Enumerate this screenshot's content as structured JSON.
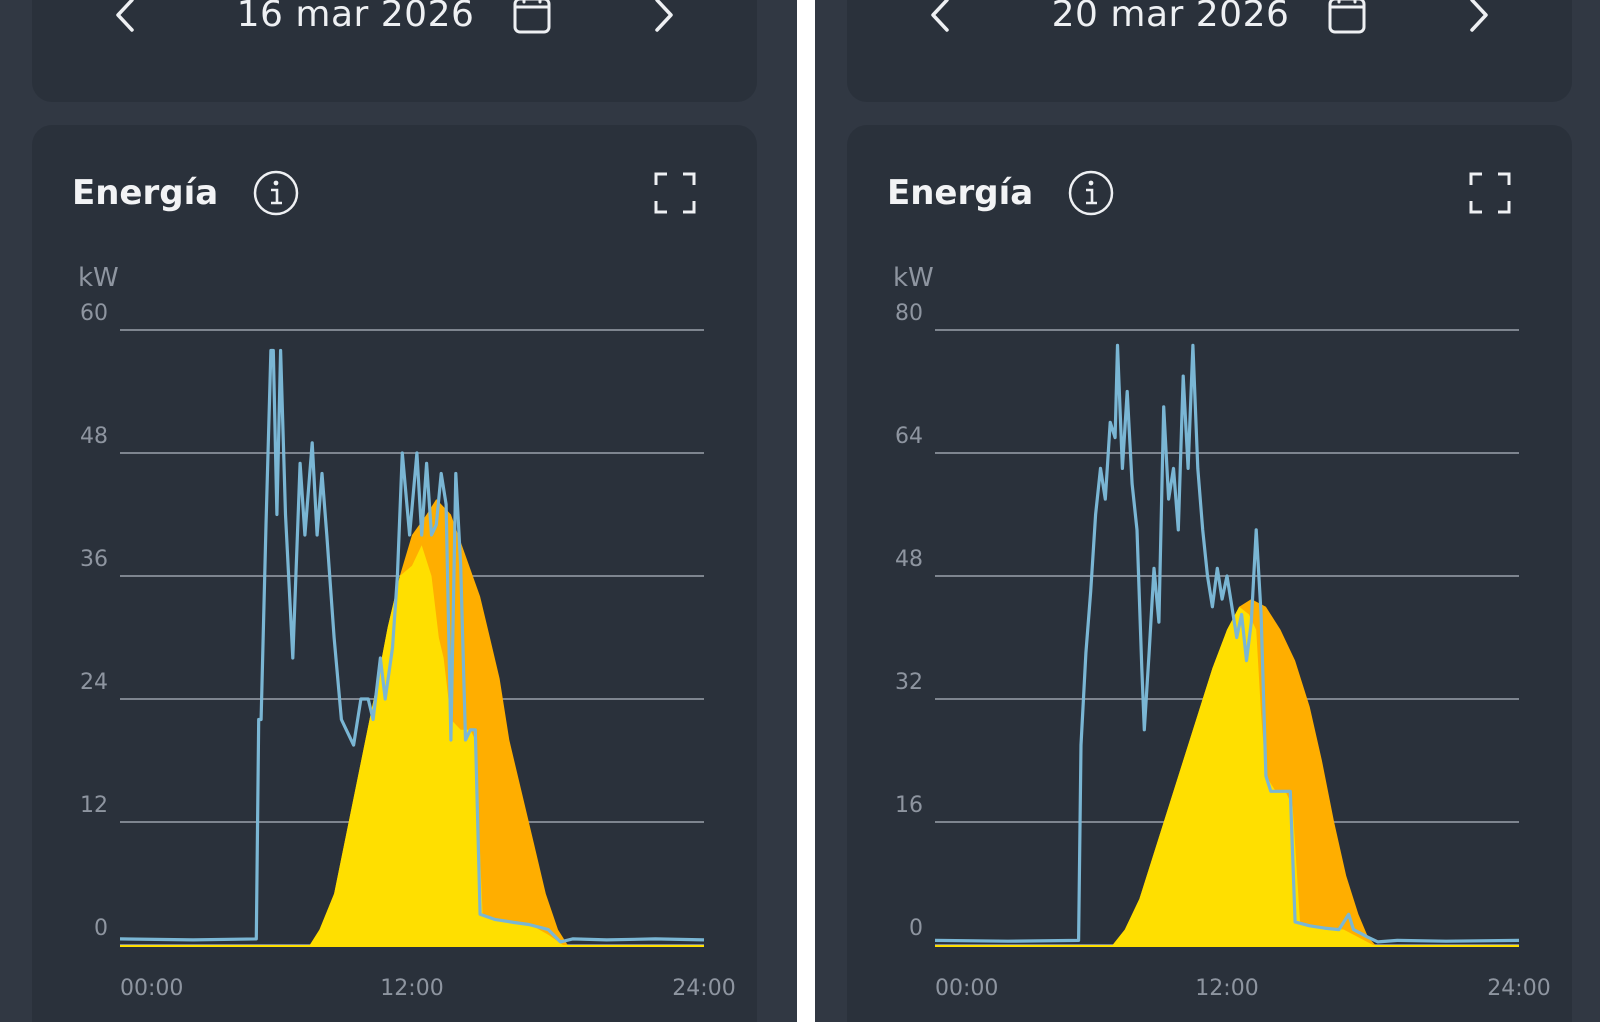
{
  "screens": [
    {
      "date": "16 mar 2026",
      "chart_title": "Energía",
      "icons": {
        "prev": "chevron-left-icon",
        "next": "chevron-right-icon",
        "calendar": "calendar-icon",
        "info": "info-icon",
        "expand": "expand-icon"
      },
      "colors": {
        "grid": "#9aa1ab",
        "axis_text": "#8e95a0",
        "consumption": "#7ab6d4",
        "solar_orange": "#ffae00",
        "solar_yellow": "#ffdf00"
      }
    },
    {
      "date": "20 mar 2026",
      "chart_title": "Energía",
      "icons": {
        "prev": "chevron-left-icon",
        "next": "chevron-right-icon",
        "calendar": "calendar-icon",
        "info": "info-icon",
        "expand": "expand-icon"
      },
      "colors": {
        "grid": "#9aa1ab",
        "axis_text": "#8e95a0",
        "consumption": "#7ab6d4",
        "solar_orange": "#ffae00",
        "solar_yellow": "#ffdf00"
      }
    }
  ],
  "chart_data": [
    {
      "type": "area",
      "title": "Energía",
      "ylabel": "kW",
      "ylim": [
        0,
        60
      ],
      "yticks": [
        0,
        12,
        24,
        36,
        48,
        60
      ],
      "xlim": [
        0,
        24
      ],
      "xticks": [
        "00:00",
        "12:00",
        "24:00"
      ],
      "grid": true,
      "series": [
        {
          "kind": "area",
          "color": "orange",
          "points": [
            [
              7.8,
              0
            ],
            [
              8.2,
              1.5
            ],
            [
              8.8,
              5
            ],
            [
              9.4,
              12
            ],
            [
              10,
              19
            ],
            [
              10.6,
              26
            ],
            [
              11,
              31
            ],
            [
              11.5,
              36
            ],
            [
              12,
              40
            ],
            [
              12.6,
              42
            ],
            [
              13,
              43.5
            ],
            [
              13.6,
              42
            ],
            [
              14.2,
              38
            ],
            [
              14.8,
              34
            ],
            [
              15.2,
              30
            ],
            [
              15.6,
              26
            ],
            [
              16,
              20
            ],
            [
              16.5,
              15
            ],
            [
              17,
              10
            ],
            [
              17.5,
              5
            ],
            [
              18,
              1.5
            ],
            [
              18.4,
              0
            ]
          ]
        },
        {
          "kind": "area",
          "color": "yellow",
          "points": [
            [
              7.8,
              0
            ],
            [
              8.2,
              1.5
            ],
            [
              8.8,
              5
            ],
            [
              9.4,
              12
            ],
            [
              10,
              19
            ],
            [
              10.6,
              26
            ],
            [
              11,
              31
            ],
            [
              11.5,
              36
            ],
            [
              12,
              37
            ],
            [
              12.4,
              39
            ],
            [
              12.8,
              36
            ],
            [
              13.1,
              30
            ],
            [
              13.3,
              28
            ],
            [
              13.6,
              22
            ],
            [
              14,
              21
            ],
            [
              14.4,
              21
            ],
            [
              14.6,
              20
            ],
            [
              14.9,
              3
            ],
            [
              15.5,
              2.5
            ],
            [
              16.2,
              2.2
            ],
            [
              17,
              1.8
            ],
            [
              17.6,
              1
            ],
            [
              18.2,
              0
            ]
          ]
        },
        {
          "kind": "line",
          "color": "blue",
          "points": [
            [
              0,
              0.6
            ],
            [
              3,
              0.5
            ],
            [
              5.6,
              0.6
            ],
            [
              5.7,
              22
            ],
            [
              5.8,
              22
            ],
            [
              6,
              41
            ],
            [
              6.2,
              58
            ],
            [
              6.3,
              58
            ],
            [
              6.45,
              42
            ],
            [
              6.6,
              58
            ],
            [
              6.8,
              42
            ],
            [
              7.1,
              28
            ],
            [
              7.4,
              47
            ],
            [
              7.6,
              40
            ],
            [
              7.9,
              49
            ],
            [
              8.1,
              40
            ],
            [
              8.3,
              46
            ],
            [
              8.5,
              40
            ],
            [
              8.8,
              30
            ],
            [
              9.1,
              22
            ],
            [
              9.3,
              21
            ],
            [
              9.6,
              19.5
            ],
            [
              9.9,
              24
            ],
            [
              10.2,
              24
            ],
            [
              10.4,
              22
            ],
            [
              10.7,
              28
            ],
            [
              10.9,
              24
            ],
            [
              11.2,
              29
            ],
            [
              11.4,
              36
            ],
            [
              11.6,
              48
            ],
            [
              11.9,
              40
            ],
            [
              12.2,
              48
            ],
            [
              12.4,
              40
            ],
            [
              12.6,
              47
            ],
            [
              12.8,
              40
            ],
            [
              13.0,
              41
            ],
            [
              13.2,
              46
            ],
            [
              13.4,
              43
            ],
            [
              13.6,
              20
            ],
            [
              13.8,
              46
            ],
            [
              14.0,
              37
            ],
            [
              14.2,
              20
            ],
            [
              14.4,
              21
            ],
            [
              14.6,
              21
            ],
            [
              14.8,
              3
            ],
            [
              15.4,
              2.5
            ],
            [
              16.2,
              2.2
            ],
            [
              16.8,
              2
            ],
            [
              17.6,
              1.5
            ],
            [
              18.1,
              0.3
            ],
            [
              18.6,
              0.6
            ],
            [
              20,
              0.5
            ],
            [
              22,
              0.6
            ],
            [
              24,
              0.5
            ]
          ]
        }
      ]
    },
    {
      "type": "area",
      "title": "Energía",
      "ylabel": "kW",
      "ylim": [
        0,
        80
      ],
      "yticks": [
        0,
        16,
        32,
        48,
        64,
        80
      ],
      "xlim": [
        0,
        24
      ],
      "xticks": [
        "00:00",
        "12:00",
        "24:00"
      ],
      "grid": true,
      "series": [
        {
          "kind": "area",
          "color": "orange",
          "points": [
            [
              7.3,
              0
            ],
            [
              7.8,
              2
            ],
            [
              8.4,
              6
            ],
            [
              9,
              12
            ],
            [
              9.6,
              18
            ],
            [
              10.2,
              24
            ],
            [
              10.8,
              30
            ],
            [
              11.4,
              36
            ],
            [
              12,
              41
            ],
            [
              12.5,
              44
            ],
            [
              13,
              45
            ],
            [
              13.6,
              44
            ],
            [
              14.2,
              41
            ],
            [
              14.8,
              37
            ],
            [
              15.4,
              31
            ],
            [
              15.9,
              24
            ],
            [
              16.4,
              16
            ],
            [
              16.9,
              9
            ],
            [
              17.4,
              4
            ],
            [
              17.8,
              1
            ],
            [
              18.1,
              0
            ]
          ]
        },
        {
          "kind": "area",
          "color": "yellow",
          "points": [
            [
              7.3,
              0
            ],
            [
              7.8,
              2
            ],
            [
              8.4,
              6
            ],
            [
              9,
              12
            ],
            [
              9.6,
              18
            ],
            [
              10.2,
              24
            ],
            [
              10.8,
              30
            ],
            [
              11.4,
              36
            ],
            [
              12,
              41
            ],
            [
              12.5,
              44
            ],
            [
              12.9,
              43
            ],
            [
              13.2,
              41
            ],
            [
              13.4,
              30
            ],
            [
              13.6,
              22
            ],
            [
              14,
              20
            ],
            [
              14.4,
              20
            ],
            [
              14.7,
              18
            ],
            [
              15.0,
              3
            ],
            [
              15.6,
              2.5
            ],
            [
              16.2,
              2.2
            ],
            [
              16.8,
              2
            ],
            [
              17.4,
              1
            ],
            [
              18,
              0
            ]
          ]
        },
        {
          "kind": "line",
          "color": "blue",
          "points": [
            [
              0,
              0.6
            ],
            [
              3,
              0.5
            ],
            [
              5.9,
              0.6
            ],
            [
              6.0,
              26
            ],
            [
              6.2,
              38
            ],
            [
              6.4,
              46
            ],
            [
              6.6,
              56
            ],
            [
              6.8,
              62
            ],
            [
              7.0,
              58
            ],
            [
              7.2,
              68
            ],
            [
              7.4,
              66
            ],
            [
              7.5,
              78
            ],
            [
              7.7,
              62
            ],
            [
              7.9,
              72
            ],
            [
              8.1,
              60
            ],
            [
              8.3,
              54
            ],
            [
              8.5,
              36
            ],
            [
              8.6,
              28
            ],
            [
              8.8,
              38
            ],
            [
              9.0,
              49
            ],
            [
              9.2,
              42
            ],
            [
              9.4,
              70
            ],
            [
              9.6,
              58
            ],
            [
              9.8,
              62
            ],
            [
              10.0,
              54
            ],
            [
              10.2,
              74
            ],
            [
              10.4,
              62
            ],
            [
              10.6,
              78
            ],
            [
              10.8,
              62
            ],
            [
              11.0,
              54
            ],
            [
              11.2,
              48
            ],
            [
              11.4,
              44
            ],
            [
              11.6,
              49
            ],
            [
              11.8,
              45
            ],
            [
              12.0,
              48
            ],
            [
              12.2,
              44
            ],
            [
              12.4,
              40
            ],
            [
              12.6,
              43
            ],
            [
              12.8,
              37
            ],
            [
              13.0,
              42
            ],
            [
              13.2,
              54
            ],
            [
              13.4,
              43
            ],
            [
              13.6,
              22
            ],
            [
              13.8,
              20
            ],
            [
              14.2,
              20
            ],
            [
              14.6,
              20
            ],
            [
              14.8,
              3
            ],
            [
              15.4,
              2.5
            ],
            [
              16,
              2.2
            ],
            [
              16.6,
              2
            ],
            [
              17.0,
              4
            ],
            [
              17.2,
              2
            ],
            [
              17.8,
              1
            ],
            [
              18.2,
              0.4
            ],
            [
              19,
              0.6
            ],
            [
              21,
              0.5
            ],
            [
              24,
              0.6
            ]
          ]
        }
      ]
    }
  ]
}
